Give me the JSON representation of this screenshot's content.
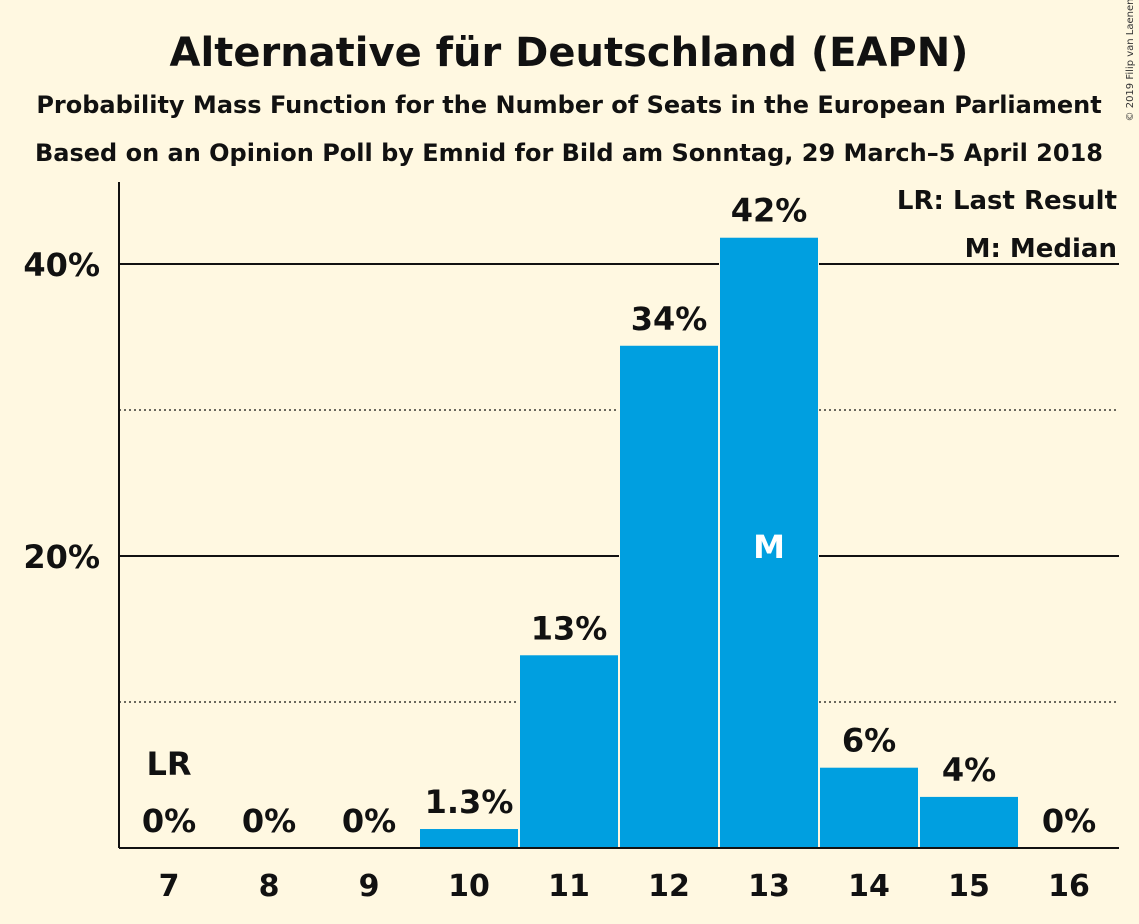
{
  "chart_data": {
    "type": "bar",
    "title": "Alternative für Deutschland (EAPN)",
    "subtitle": "Probability Mass Function for the Number of Seats in the European Parliament",
    "subtitle2": "Based on an Opinion Poll by Emnid for Bild am Sonntag, 29 March–5 April 2018",
    "copyright": "© 2019 Filip van Laenen",
    "xlabel": "",
    "ylabel": "",
    "categories": [
      "7",
      "8",
      "9",
      "10",
      "11",
      "12",
      "13",
      "14",
      "15",
      "16"
    ],
    "values": [
      0,
      0,
      0,
      1.3,
      13.2,
      34.4,
      41.8,
      5.5,
      3.5,
      0
    ],
    "data_labels": [
      "0%",
      "0%",
      "0%",
      "1.3%",
      "13%",
      "34%",
      "42%",
      "6%",
      "4%",
      "0%"
    ],
    "ylim": [
      0,
      45
    ],
    "y_ticks": [
      {
        "value": 20,
        "label": "20%"
      },
      {
        "value": 40,
        "label": "40%"
      }
    ],
    "minor_gridlines": [
      10,
      30
    ],
    "last_result": {
      "category": "7",
      "label": "LR"
    },
    "median": {
      "category": "13",
      "label": "M"
    },
    "legend": {
      "placement": "top-right",
      "items": [
        "LR: Last Result",
        "M: Median"
      ]
    },
    "colors": {
      "bar": "#009fe0",
      "background": "#fff8e1",
      "text": "#111111"
    }
  }
}
